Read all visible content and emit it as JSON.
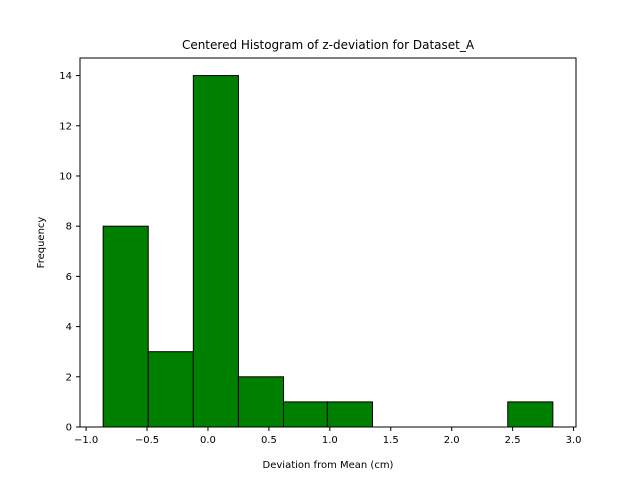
{
  "chart_data": {
    "type": "bar",
    "title": "Centered Histogram of z-deviation for Dataset_A",
    "xlabel": "Deviation from Mean (cm)",
    "ylabel": "Frequency",
    "bar_color": "#008000",
    "edge_color": "#000000",
    "bins": [
      {
        "x0": -0.86,
        "x1": -0.49,
        "count": 8
      },
      {
        "x0": -0.49,
        "x1": -0.12,
        "count": 3
      },
      {
        "x0": -0.12,
        "x1": 0.25,
        "count": 14
      },
      {
        "x0": 0.25,
        "x1": 0.62,
        "count": 2
      },
      {
        "x0": 0.62,
        "x1": 0.98,
        "count": 1
      },
      {
        "x0": 0.98,
        "x1": 1.35,
        "count": 1
      },
      {
        "x0": 1.35,
        "x1": 1.72,
        "count": 0
      },
      {
        "x0": 1.72,
        "x1": 2.09,
        "count": 0
      },
      {
        "x0": 2.09,
        "x1": 2.46,
        "count": 0
      },
      {
        "x0": 2.46,
        "x1": 2.83,
        "count": 1
      }
    ],
    "xlim": [
      -1.05,
      3.02
    ],
    "ylim": [
      0,
      14.7
    ],
    "xticks": [
      -1.0,
      -0.5,
      0.0,
      0.5,
      1.0,
      1.5,
      2.0,
      2.5,
      3.0
    ],
    "xtick_labels": [
      "−1.0",
      "−0.5",
      "0.0",
      "0.5",
      "1.0",
      "1.5",
      "2.0",
      "2.5",
      "3.0"
    ],
    "yticks": [
      0,
      2,
      4,
      6,
      8,
      10,
      12,
      14
    ],
    "ytick_labels": [
      "0",
      "2",
      "4",
      "6",
      "8",
      "10",
      "12",
      "14"
    ],
    "grid": false,
    "legend": "none"
  }
}
